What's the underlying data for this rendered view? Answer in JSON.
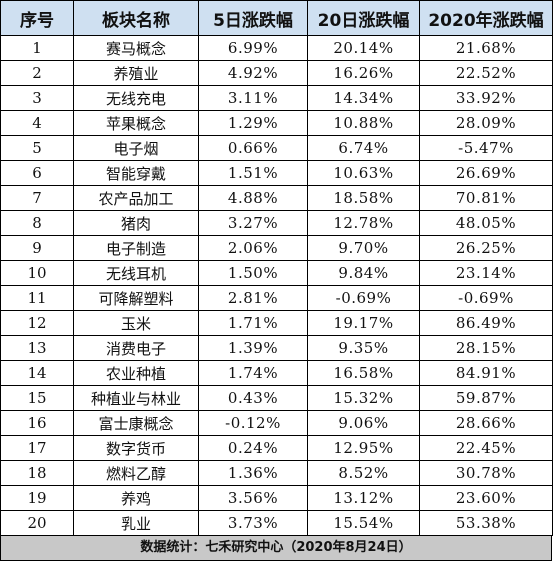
{
  "table": {
    "headers": [
      "序号",
      "板块名称",
      "5日涨跌幅",
      "20日涨跌幅",
      "2020年涨跌幅"
    ],
    "rows": [
      [
        "1",
        "赛马概念",
        "6.99%",
        "20.14%",
        "21.68%"
      ],
      [
        "2",
        "养殖业",
        "4.92%",
        "16.26%",
        "22.52%"
      ],
      [
        "3",
        "无线充电",
        "3.11%",
        "14.34%",
        "33.92%"
      ],
      [
        "4",
        "苹果概念",
        "1.29%",
        "10.88%",
        "28.09%"
      ],
      [
        "5",
        "电子烟",
        "0.66%",
        "6.74%",
        "-5.47%"
      ],
      [
        "6",
        "智能穿戴",
        "1.51%",
        "10.63%",
        "26.69%"
      ],
      [
        "7",
        "农产品加工",
        "4.88%",
        "18.58%",
        "70.81%"
      ],
      [
        "8",
        "猪肉",
        "3.27%",
        "12.78%",
        "48.05%"
      ],
      [
        "9",
        "电子制造",
        "2.06%",
        "9.70%",
        "26.25%"
      ],
      [
        "10",
        "无线耳机",
        "1.50%",
        "9.84%",
        "23.14%"
      ],
      [
        "11",
        "可降解塑料",
        "2.81%",
        "-0.69%",
        "-0.69%"
      ],
      [
        "12",
        "玉米",
        "1.71%",
        "19.17%",
        "86.49%"
      ],
      [
        "13",
        "消费电子",
        "1.39%",
        "9.35%",
        "28.15%"
      ],
      [
        "14",
        "农业种植",
        "1.74%",
        "16.58%",
        "84.91%"
      ],
      [
        "15",
        "种植业与林业",
        "0.43%",
        "15.32%",
        "59.87%"
      ],
      [
        "16",
        "富士康概念",
        "-0.12%",
        "9.06%",
        "28.66%"
      ],
      [
        "17",
        "数字货币",
        "0.24%",
        "12.95%",
        "22.45%"
      ],
      [
        "18",
        "燃料乙醇",
        "1.36%",
        "8.52%",
        "30.78%"
      ],
      [
        "19",
        "养鸡",
        "3.56%",
        "13.12%",
        "23.60%"
      ],
      [
        "20",
        "乳业",
        "3.73%",
        "15.54%",
        "53.38%"
      ]
    ]
  },
  "footer": {
    "note": "数据统计：七禾研究中心（2020年8月24日）"
  },
  "colors": {
    "header_bg": "#cfe0f1",
    "footer_bg": "#c8c8c8",
    "border": "#000000"
  }
}
